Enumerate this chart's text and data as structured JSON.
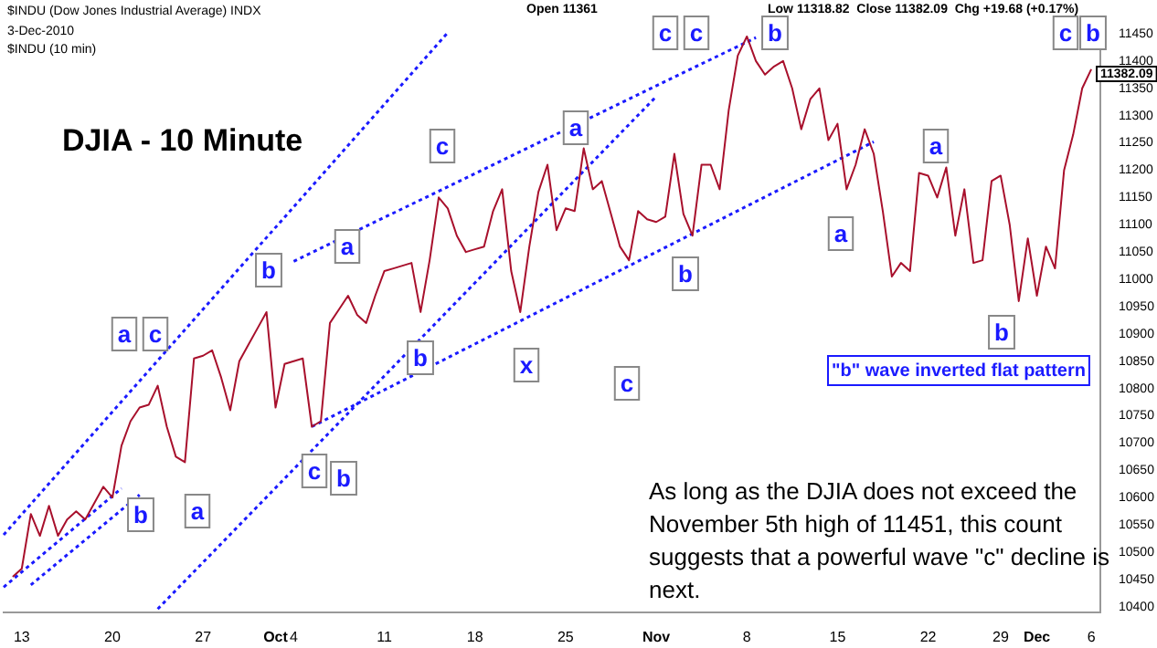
{
  "chart_data": {
    "type": "line",
    "title": "DJIA - 10 Minute",
    "subtitle": "$INDU (Dow Jones Industrial Average) INDX",
    "categories": [
      null,
      null,
      "13",
      null,
      null,
      null,
      null,
      null,
      null,
      null,
      null,
      null,
      "20",
      null,
      null,
      null,
      null,
      null,
      null,
      null,
      null,
      null,
      "27",
      null,
      null,
      null,
      null,
      null,
      null,
      null,
      "Oct",
      null,
      "4",
      null,
      null,
      null,
      null,
      null,
      null,
      null,
      null,
      null,
      "11",
      null,
      null,
      null,
      null,
      null,
      null,
      null,
      null,
      null,
      "18",
      null,
      null,
      null,
      null,
      null,
      null,
      null,
      null,
      null,
      "25",
      null,
      null,
      null,
      null,
      null,
      null,
      null,
      null,
      null,
      "Nov",
      null,
      null,
      null,
      null,
      null,
      null,
      null,
      null,
      null,
      "8",
      null,
      null,
      null,
      null,
      null,
      null,
      null,
      null,
      null,
      "15",
      null,
      null,
      null,
      null,
      null,
      null,
      null,
      null,
      null,
      "22",
      null,
      null,
      null,
      null,
      null,
      null,
      null,
      "29",
      null,
      null,
      null,
      "Dec",
      null,
      null,
      null,
      null,
      null,
      "6",
      null
    ],
    "ylim": [
      10390,
      11465
    ],
    "yticks": [
      10400,
      10450,
      10500,
      10550,
      10600,
      10650,
      10700,
      10750,
      10800,
      10850,
      10900,
      10950,
      11000,
      11050,
      11100,
      11150,
      11200,
      11250,
      11300,
      11350,
      11400,
      11450
    ],
    "grid": false,
    "legend": false,
    "marker": "none",
    "series": [
      {
        "color": "#a8102c",
        "line_style": "solid",
        "values": [
          null,
          10455,
          10470,
          10570,
          10530,
          10585,
          10530,
          10560,
          10575,
          10560,
          10590,
          10620,
          10600,
          10695,
          10740,
          10765,
          10770,
          10805,
          10730,
          10675,
          10665,
          10855,
          10860,
          10870,
          10820,
          10760,
          10850,
          10880,
          10910,
          10940,
          10765,
          10845,
          10850,
          10855,
          10730,
          10740,
          10920,
          10945,
          10970,
          10935,
          10920,
          10970,
          11015,
          11020,
          11025,
          11030,
          10940,
          11035,
          11150,
          11130,
          11080,
          11050,
          11055,
          11060,
          11125,
          11165,
          11015,
          10940,
          11060,
          11160,
          11210,
          11090,
          11130,
          11125,
          11240,
          11165,
          11180,
          11120,
          11060,
          11035,
          11125,
          11110,
          11105,
          11115,
          11230,
          11120,
          11080,
          11210,
          11210,
          11165,
          11310,
          11410,
          11445,
          11400,
          11375,
          11390,
          11400,
          11350,
          11275,
          11330,
          11350,
          11255,
          11285,
          11165,
          11210,
          11275,
          11230,
          11125,
          11005,
          11030,
          11015,
          11195,
          11190,
          11150,
          11205,
          11080,
          11165,
          11030,
          11035,
          11180,
          11190,
          11100,
          10960,
          11075,
          10970,
          11060,
          11020,
          11200,
          11265,
          11350,
          11385,
          null
        ]
      },
      {
        "color": "#1a1aff",
        "line_style": "dotted",
        "values": [
          10532,
          null,
          null,
          null,
          null,
          null,
          null,
          null,
          null,
          null,
          null,
          null,
          null,
          null,
          null,
          null,
          null,
          null,
          null,
          null,
          null,
          null,
          null,
          null,
          null,
          null,
          null,
          null,
          null,
          null,
          null,
          null,
          null,
          null,
          null,
          null,
          null,
          null,
          null,
          null,
          null,
          null,
          null,
          null,
          null,
          null,
          null,
          null,
          null,
          11452,
          null,
          null,
          null,
          null,
          null,
          null,
          null,
          null,
          null,
          null,
          null,
          null,
          null,
          null,
          null,
          null,
          null,
          null,
          null,
          null,
          null,
          null,
          null,
          null,
          null,
          null,
          null,
          null,
          null,
          null,
          null,
          null,
          null,
          null,
          null,
          null,
          null,
          null,
          null,
          null,
          null,
          null,
          null,
          null,
          null,
          null,
          null,
          null,
          null,
          null,
          null,
          null,
          null,
          null,
          null,
          null,
          null,
          null,
          null,
          null,
          null,
          null,
          null,
          null,
          null,
          null,
          null,
          null,
          null,
          null,
          null,
          null
        ]
      },
      {
        "color": "#1a1aff",
        "line_style": "dotted",
        "values": [
          10436,
          null,
          null,
          null,
          null,
          null,
          null,
          null,
          null,
          null,
          null,
          null,
          null,
          10617,
          null,
          null,
          null,
          null,
          null,
          null,
          null,
          null,
          null,
          null,
          null,
          null,
          null,
          null,
          null,
          null,
          null,
          null,
          null,
          null,
          null,
          null,
          null,
          null,
          null,
          null,
          null,
          null,
          null,
          null,
          null,
          null,
          null,
          null,
          null,
          null,
          null,
          null,
          null,
          null,
          null,
          null,
          null,
          null,
          null,
          null,
          null,
          null,
          null,
          null,
          null,
          null,
          null,
          null,
          null,
          null,
          null,
          null,
          null,
          null,
          null,
          null,
          null,
          null,
          null,
          null,
          null,
          null,
          null,
          null,
          null,
          null,
          null,
          null,
          null,
          null,
          null,
          null,
          null,
          null,
          null,
          null,
          null,
          null,
          null,
          null,
          null,
          null,
          null,
          null,
          null,
          null,
          null,
          null,
          null,
          null,
          null,
          null,
          null,
          null,
          null,
          null,
          null,
          null,
          null,
          null,
          null,
          null
        ]
      },
      {
        "color": "#1a1aff",
        "line_style": "dotted",
        "values": [
          null,
          null,
          null,
          10440,
          null,
          null,
          null,
          null,
          null,
          null,
          null,
          null,
          null,
          null,
          null,
          10605,
          null,
          null,
          null,
          null,
          null,
          null,
          null,
          null,
          null,
          null,
          null,
          null,
          null,
          null,
          null,
          null,
          null,
          null,
          null,
          null,
          null,
          null,
          null,
          null,
          null,
          null,
          null,
          null,
          null,
          null,
          null,
          null,
          null,
          null,
          null,
          null,
          null,
          null,
          null,
          null,
          null,
          null,
          null,
          null,
          null,
          null,
          null,
          null,
          null,
          null,
          null,
          null,
          null,
          null,
          null,
          null,
          null,
          null,
          null,
          null,
          null,
          null,
          null,
          null,
          null,
          null,
          null,
          null,
          null,
          null,
          null,
          null,
          null,
          null,
          null,
          null,
          null,
          null,
          null,
          null,
          null,
          null,
          null,
          null,
          null,
          null,
          null,
          null,
          null,
          null,
          null,
          null,
          null,
          null,
          null,
          null,
          null,
          null,
          null,
          null,
          null,
          null,
          null,
          null,
          null,
          null
        ]
      },
      {
        "color": "#1a1aff",
        "line_style": "dotted",
        "values": [
          null,
          null,
          null,
          null,
          null,
          null,
          null,
          null,
          null,
          null,
          null,
          null,
          null,
          null,
          null,
          null,
          null,
          10396,
          null,
          null,
          null,
          null,
          null,
          null,
          null,
          null,
          null,
          null,
          null,
          null,
          null,
          null,
          null,
          null,
          null,
          null,
          null,
          null,
          null,
          null,
          null,
          null,
          null,
          null,
          null,
          null,
          null,
          null,
          null,
          null,
          null,
          null,
          null,
          null,
          null,
          null,
          null,
          null,
          null,
          null,
          null,
          null,
          null,
          null,
          null,
          null,
          null,
          null,
          null,
          null,
          null,
          null,
          11335,
          null,
          null,
          null,
          null,
          null,
          null,
          null,
          null,
          null,
          null,
          null,
          null,
          null,
          null,
          null,
          null,
          null,
          null,
          null,
          null,
          null,
          null,
          null,
          null,
          null,
          null,
          null,
          null,
          null,
          null,
          null,
          null,
          null,
          null,
          null,
          null,
          null,
          null,
          null,
          null,
          null,
          null,
          null,
          null,
          null,
          null,
          null,
          null,
          null
        ]
      },
      {
        "color": "#1a1aff",
        "line_style": "dotted",
        "values": [
          null,
          null,
          null,
          null,
          null,
          null,
          null,
          null,
          null,
          null,
          null,
          null,
          null,
          null,
          null,
          null,
          null,
          null,
          null,
          null,
          null,
          null,
          null,
          null,
          null,
          null,
          null,
          null,
          null,
          null,
          null,
          null,
          null,
          null,
          10730,
          null,
          null,
          null,
          null,
          null,
          null,
          null,
          null,
          null,
          null,
          null,
          null,
          null,
          null,
          null,
          null,
          null,
          null,
          null,
          null,
          null,
          null,
          null,
          null,
          null,
          null,
          null,
          null,
          null,
          null,
          null,
          null,
          null,
          null,
          null,
          null,
          null,
          null,
          null,
          null,
          null,
          null,
          null,
          null,
          null,
          null,
          null,
          null,
          null,
          null,
          null,
          null,
          null,
          null,
          null,
          null,
          null,
          null,
          null,
          null,
          null,
          11252,
          null,
          null,
          null,
          null,
          null,
          null,
          null,
          null,
          null,
          null,
          null,
          null,
          null,
          null,
          null,
          null,
          null,
          null,
          null,
          null,
          null,
          null,
          null,
          null,
          null
        ]
      },
      {
        "color": "#1a1aff",
        "line_style": "dotted",
        "values": [
          null,
          null,
          null,
          null,
          null,
          null,
          null,
          null,
          null,
          null,
          null,
          null,
          null,
          null,
          null,
          null,
          null,
          null,
          null,
          null,
          null,
          null,
          null,
          null,
          null,
          null,
          null,
          null,
          null,
          null,
          null,
          null,
          11033,
          null,
          null,
          null,
          null,
          null,
          null,
          null,
          null,
          null,
          null,
          null,
          null,
          null,
          null,
          null,
          null,
          null,
          null,
          null,
          null,
          null,
          null,
          null,
          null,
          null,
          null,
          null,
          null,
          null,
          null,
          null,
          null,
          null,
          null,
          null,
          null,
          null,
          null,
          null,
          null,
          null,
          null,
          null,
          null,
          null,
          null,
          null,
          null,
          null,
          null,
          11443,
          null,
          null,
          null,
          null,
          null,
          null,
          null,
          null,
          null,
          null,
          null,
          null,
          null,
          null,
          null,
          null,
          null,
          null,
          null,
          null,
          null,
          null,
          null,
          null,
          null,
          null,
          null,
          null,
          null,
          null,
          null,
          null,
          null,
          null,
          null,
          null,
          null,
          null
        ]
      }
    ],
    "annotations": [
      "3-Dec-2010",
      "$INDU (10 min)",
      "Open 11361",
      "Low 11318.82  Close 11382.09  Chg +19.68 (+0.17%)",
      "\"b\" wave inverted flat pattern",
      "As long as the DJIA does not exceed the November 5th high of 11451, this count suggests that a powerful wave \"c\" decline is next.",
      "11382.09",
      "a",
      "c",
      "b",
      "a",
      "b",
      "a",
      "c",
      "c",
      "b",
      "b",
      "x",
      "a",
      "c",
      "b",
      "a",
      "c",
      "c",
      "b",
      "a",
      "b",
      "c",
      "b"
    ]
  }
}
